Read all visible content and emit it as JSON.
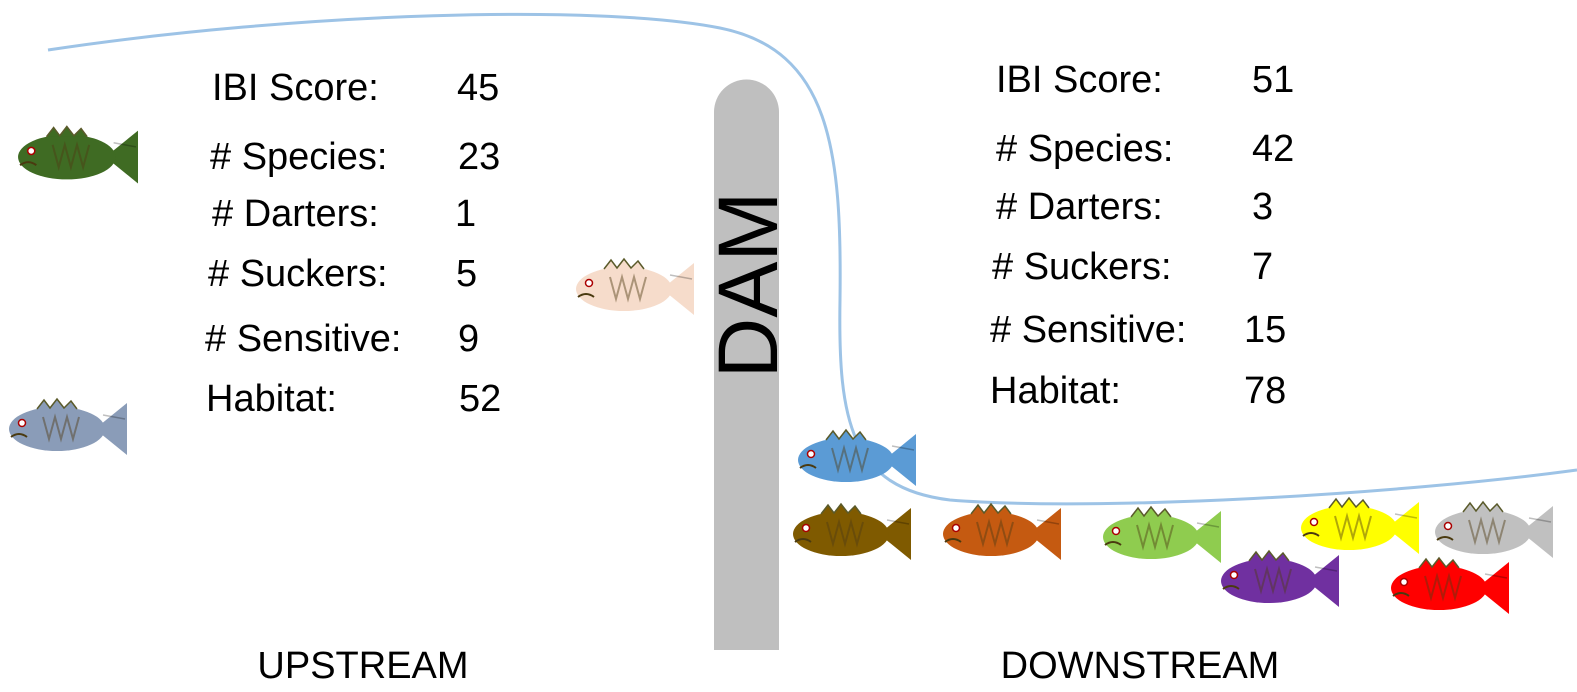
{
  "upstream": {
    "label": "UPSTREAM",
    "metrics": [
      {
        "label": "IBI Score:",
        "value": 45
      },
      {
        "label": "# Species:",
        "value": 23
      },
      {
        "label": "# Darters:",
        "value": 1
      },
      {
        "label": "# Suckers:",
        "value": 5
      },
      {
        "label": "# Sensitive:",
        "value": 9
      },
      {
        "label": "Habitat:",
        "value": 52
      }
    ]
  },
  "downstream": {
    "label": "DOWNSTREAM",
    "metrics": [
      {
        "label": "IBI Score:",
        "value": 51
      },
      {
        "label": "# Species:",
        "value": 42
      },
      {
        "label": "# Darters:",
        "value": 3
      },
      {
        "label": "# Suckers:",
        "value": 7
      },
      {
        "label": "# Sensitive:",
        "value": 15
      },
      {
        "label": "Habitat:",
        "value": 78
      }
    ]
  },
  "dam": {
    "label": "DAM"
  }
}
